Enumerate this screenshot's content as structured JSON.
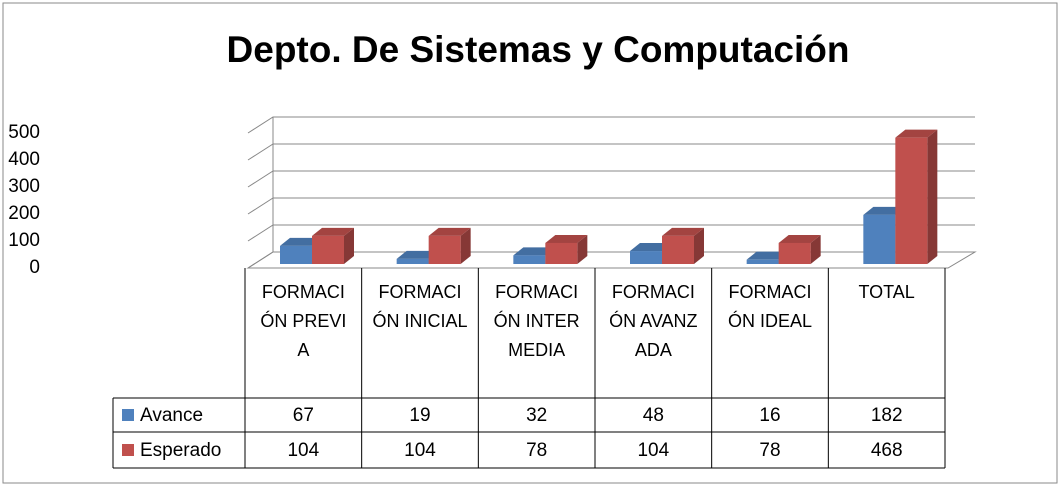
{
  "chart_data": {
    "type": "bar3d",
    "title": "Depto. De Sistemas y Computación",
    "categories": [
      "FORMACIÓN PREVIA",
      "FORMACIÓN INICIAL",
      "FORMACIÓN INTERMEDIA",
      "FORMACIÓN AVANZADA",
      "FORMACIÓN IDEAL",
      "TOTAL"
    ],
    "series": [
      {
        "name": "Avance",
        "color": "#4f81bd",
        "values": [
          67,
          19,
          32,
          48,
          16,
          182
        ]
      },
      {
        "name": "Esperado",
        "color": "#c0504d",
        "values": [
          104,
          104,
          78,
          104,
          78,
          468
        ]
      }
    ],
    "ylim": [
      0,
      500
    ],
    "yticks": [
      0,
      100,
      200,
      300,
      400,
      500
    ],
    "grid": true
  }
}
